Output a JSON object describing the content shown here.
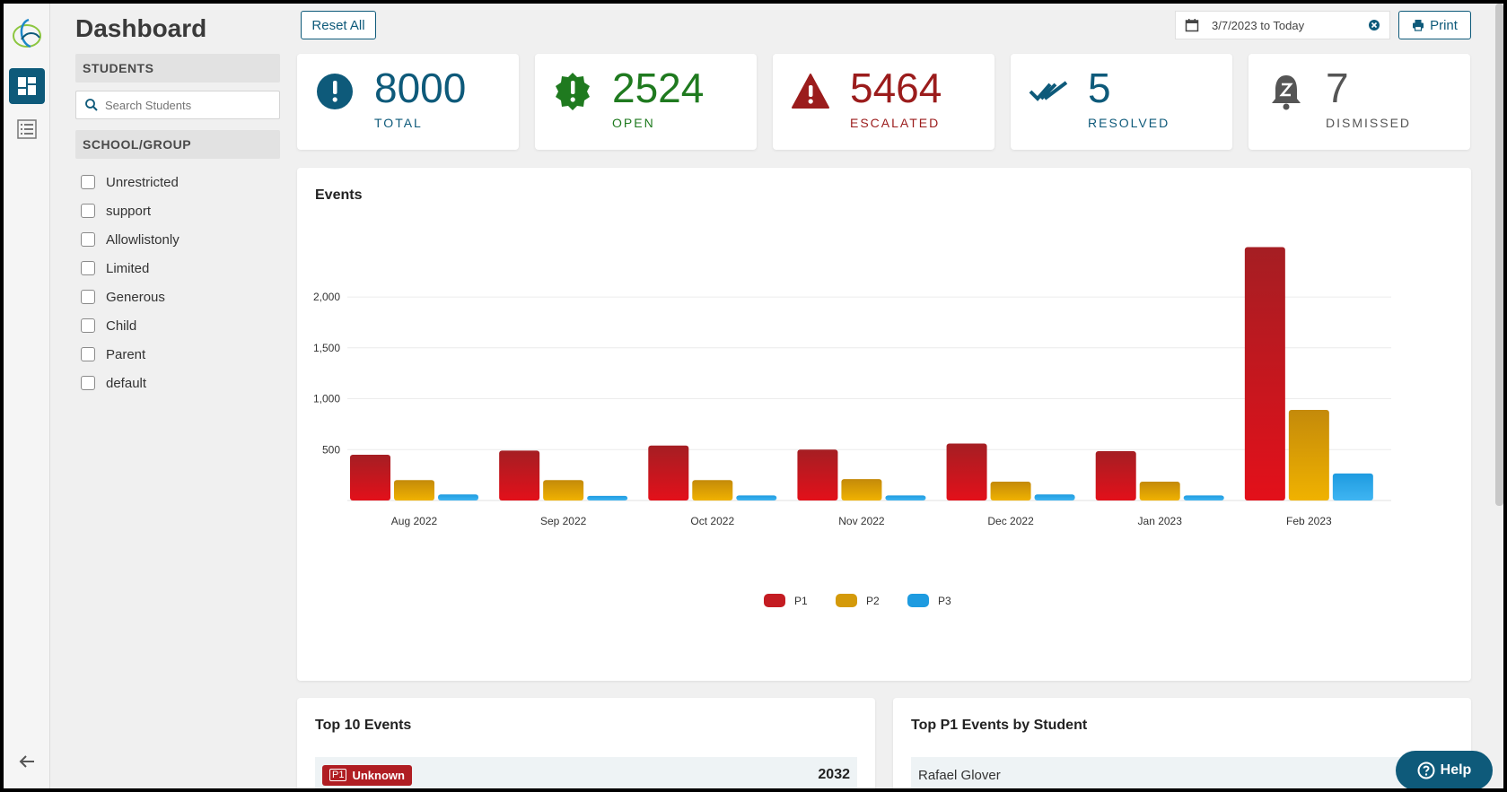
{
  "sidebar": {
    "title": "Dashboard",
    "students_section": "STUDENTS",
    "search_placeholder": "Search Students",
    "group_section": "SCHOOL/GROUP",
    "groups": [
      "Unrestricted",
      "support",
      "Allowlistonly",
      "Limited",
      "Generous",
      "Child",
      "Parent",
      "default"
    ]
  },
  "toolbar": {
    "reset_label": "Reset All",
    "date_range": "3/7/2023 to Today",
    "print_label": "Print"
  },
  "stats": [
    {
      "value": "8000",
      "label": "TOTAL",
      "color": "#0e5a7a",
      "icon": "exclamation-circle-icon"
    },
    {
      "value": "2524",
      "label": "OPEN",
      "color": "#1f7a1f",
      "icon": "exclamation-badge-icon"
    },
    {
      "value": "5464",
      "label": "ESCALATED",
      "color": "#9b1c1c",
      "icon": "warning-triangle-icon"
    },
    {
      "value": "5",
      "label": "RESOLVED",
      "color": "#0e5a7a",
      "icon": "double-check-icon"
    },
    {
      "value": "7",
      "label": "DISMISSED",
      "color": "#555555",
      "icon": "snooze-bell-icon"
    }
  ],
  "events_title": "Events",
  "chart_data": {
    "type": "bar",
    "categories": [
      "Aug 2022",
      "Sep 2022",
      "Oct 2022",
      "Nov 2022",
      "Dec 2022",
      "Jan 2023",
      "Feb 2023"
    ],
    "series": [
      {
        "name": "P1",
        "values": [
          450,
          490,
          540,
          500,
          560,
          485,
          2490
        ],
        "color": "#c41c22"
      },
      {
        "name": "P2",
        "values": [
          200,
          200,
          200,
          210,
          185,
          185,
          890
        ],
        "color": "#d49a0a"
      },
      {
        "name": "P3",
        "values": [
          60,
          45,
          50,
          50,
          60,
          50,
          265
        ],
        "color": "#1e9be0"
      }
    ],
    "y_ticks": [
      500,
      1000,
      1500,
      2000
    ],
    "y_tick_labels": [
      "500",
      "1,000",
      "1,500",
      "2,000"
    ],
    "ylim": [
      0,
      2600
    ],
    "grid": true,
    "legend": "bottom-center"
  },
  "top_events": {
    "title": "Top 10 Events",
    "rows": [
      {
        "badge": "P1",
        "label": "Unknown",
        "count": "2032"
      }
    ]
  },
  "top_p1": {
    "title": "Top P1 Events by Student",
    "rows": [
      {
        "name": "Rafael Glover"
      }
    ]
  },
  "help_label": "Help"
}
